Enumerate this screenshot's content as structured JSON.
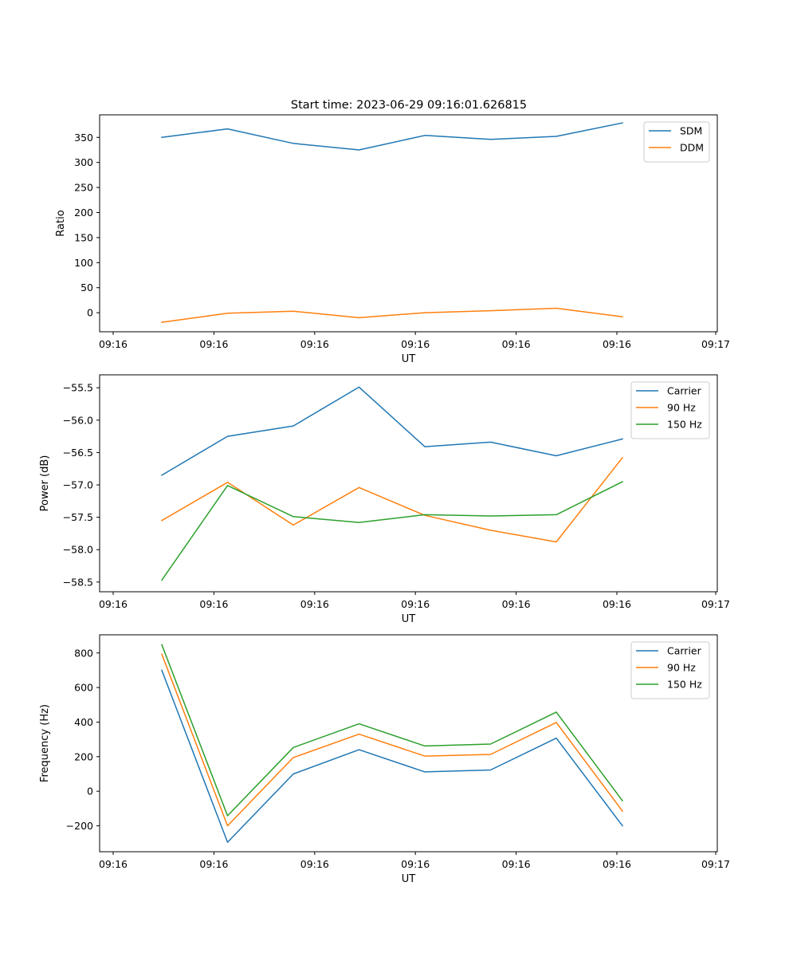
{
  "figure_title": "Start time: 2023-06-29 09:16:01.626815",
  "colors": {
    "blue": "#1f77b4",
    "orange": "#ff7f0e",
    "green": "#2ca02c"
  },
  "chart_data": [
    {
      "type": "line",
      "title": "Start time: 2023-06-29 09:16:01.626815",
      "xlabel": "UT",
      "ylabel": "Ratio",
      "xticks": [
        "09:16",
        "09:16",
        "09:16",
        "09:16",
        "09:16",
        "09:16",
        "09:17"
      ],
      "ylim": [
        -38,
        395
      ],
      "yticks": [
        0,
        50,
        100,
        150,
        200,
        250,
        300,
        350
      ],
      "legend": "top-right",
      "grid": false,
      "series": [
        {
          "name": "SDM",
          "color": "#1f77b4",
          "values": [
            350,
            367,
            338,
            325,
            354,
            346,
            352,
            379
          ]
        },
        {
          "name": "DDM",
          "color": "#ff7f0e",
          "values": [
            -19,
            -1,
            3,
            -10,
            0,
            4,
            9,
            -8
          ]
        }
      ]
    },
    {
      "type": "line",
      "title": "",
      "xlabel": "UT",
      "ylabel": "Power (dB)",
      "xticks": [
        "09:16",
        "09:16",
        "09:16",
        "09:16",
        "09:16",
        "09:16",
        "09:17"
      ],
      "ylim": [
        -58.65,
        -55.3
      ],
      "yticks": [
        -58.5,
        -58.0,
        -57.5,
        -57.0,
        -56.5,
        -56.0,
        -55.5
      ],
      "legend": "top-right",
      "grid": false,
      "series": [
        {
          "name": "Carrier",
          "color": "#1f77b4",
          "values": [
            -56.85,
            -56.25,
            -56.09,
            -55.49,
            -56.41,
            -56.34,
            -56.55,
            -56.29
          ]
        },
        {
          "name": "90 Hz",
          "color": "#ff7f0e",
          "values": [
            -57.55,
            -56.96,
            -57.62,
            -57.04,
            -57.47,
            -57.7,
            -57.88,
            -56.58
          ]
        },
        {
          "name": "150 Hz",
          "color": "#2ca02c",
          "values": [
            -58.47,
            -57.01,
            -57.49,
            -57.58,
            -57.46,
            -57.48,
            -57.46,
            -56.95
          ]
        }
      ]
    },
    {
      "type": "line",
      "title": "",
      "xlabel": "UT",
      "ylabel": "Frequency (Hz)",
      "xticks": [
        "09:16",
        "09:16",
        "09:16",
        "09:16",
        "09:16",
        "09:16",
        "09:17"
      ],
      "ylim": [
        -350,
        905
      ],
      "yticks": [
        -200,
        0,
        200,
        400,
        600,
        800
      ],
      "legend": "top-right",
      "grid": false,
      "series": [
        {
          "name": "Carrier",
          "color": "#1f77b4",
          "values": [
            700,
            -295,
            100,
            240,
            112,
            123,
            307,
            -200
          ]
        },
        {
          "name": "90 Hz",
          "color": "#ff7f0e",
          "values": [
            793,
            -200,
            195,
            330,
            203,
            213,
            398,
            -115
          ]
        },
        {
          "name": "150 Hz",
          "color": "#2ca02c",
          "values": [
            848,
            -142,
            253,
            390,
            262,
            273,
            458,
            -55
          ]
        }
      ]
    }
  ]
}
